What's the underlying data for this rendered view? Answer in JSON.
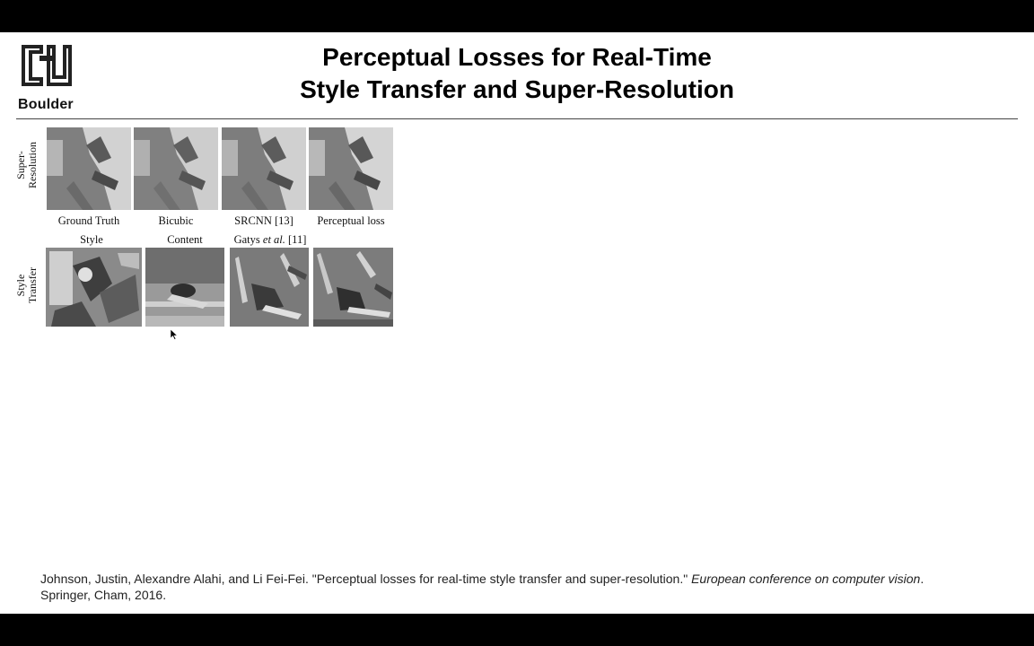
{
  "slide": {
    "logo_text": "Boulder",
    "title_line1": "Perceptual Losses for Real-Time",
    "title_line2": "Style Transfer and Super-Resolution"
  },
  "figure": {
    "row_labels": {
      "super_resolution_line1": "Super-",
      "super_resolution_line2": "Resolution",
      "style_transfer_line1": "Style",
      "style_transfer_line2": "Transfer"
    },
    "sr_captions": [
      "Ground Truth",
      "Bicubic",
      "SRCNN [13]",
      "Perceptual loss"
    ],
    "st_captions": {
      "style": "Style",
      "content": "Content",
      "gatys_prefix": "Gatys ",
      "gatys_etal": "et al.",
      "gatys_ref": " [11]"
    }
  },
  "citation": {
    "part1": "Johnson, Justin, Alexandre Alahi, and Li Fei-Fei. \"Perceptual losses for real-time style transfer and super-resolution.\" ",
    "venue": "European conference on computer vision",
    "part2": ".",
    "line2": "Springer, Cham, 2016."
  },
  "colors": {
    "background": "#ffffff",
    "letterbox": "#000000",
    "rule": "#444444"
  }
}
